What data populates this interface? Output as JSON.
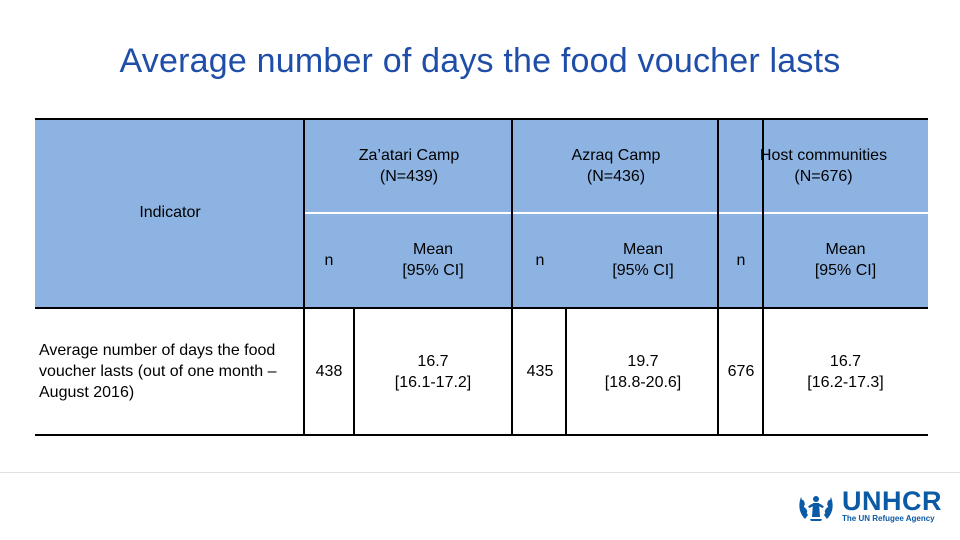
{
  "title": "Average number of days the food voucher lasts",
  "table": {
    "indicator_header": "Indicator",
    "groups": [
      {
        "name": "Za’atari Camp",
        "n_total": "(N=439)"
      },
      {
        "name": "Azraq Camp",
        "n_total": "(N=436)"
      },
      {
        "name": "Host communities",
        "n_total": "(N=676)"
      }
    ],
    "sub_n": "n",
    "sub_mean_line1": "Mean",
    "sub_mean_line2": "[95% CI]",
    "row": {
      "label": "Average number of days the food voucher lasts (out of one month – August 2016)",
      "values": [
        {
          "n": "438",
          "mean": "16.7",
          "ci": "[16.1-17.2]"
        },
        {
          "n": "435",
          "mean": "19.7",
          "ci": "[18.8-20.6]"
        },
        {
          "n": "676",
          "mean": "16.7",
          "ci": "[16.2-17.3]"
        }
      ]
    }
  },
  "logo": {
    "name": "UNHCR",
    "tagline": "The UN Refugee Agency",
    "color": "#0b5aa5"
  }
}
